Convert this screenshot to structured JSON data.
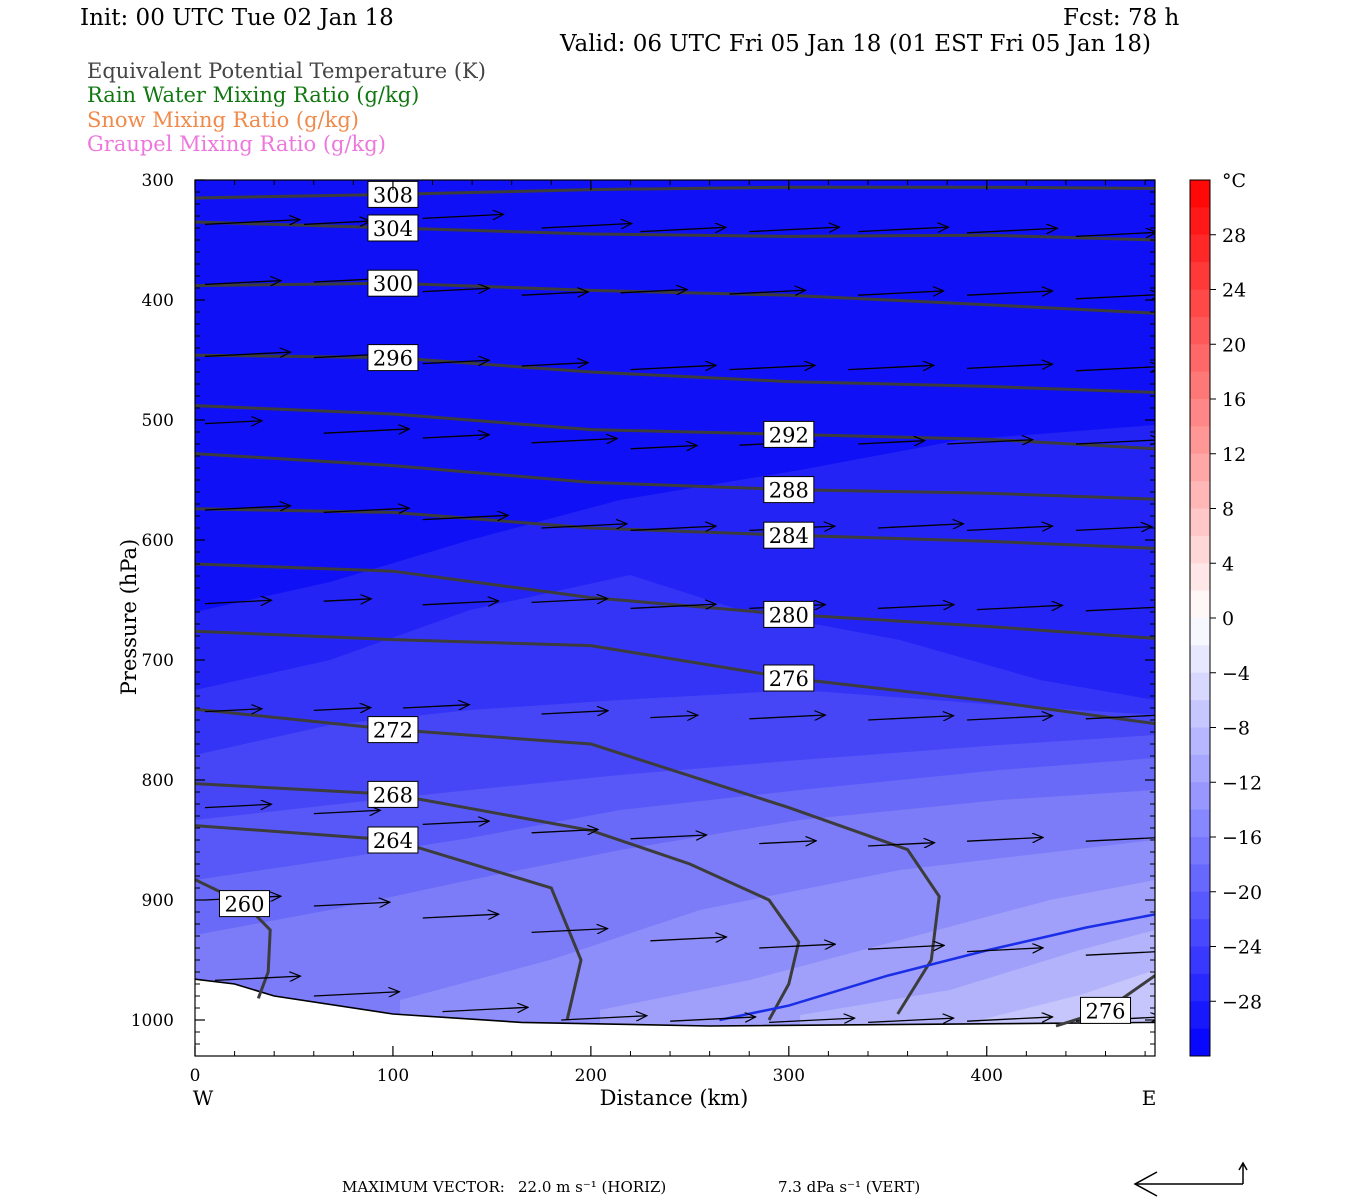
{
  "header": {
    "init": "Init: 00 UTC Tue 02 Jan 18",
    "fcst": "Fcst:   78 h",
    "valid": "Valid: 06 UTC Fri 05 Jan 18 (01 EST Fri 05 Jan 18)"
  },
  "fields": [
    {
      "label": "Equivalent Potential Temperature (K)",
      "color": "#444444"
    },
    {
      "label": "Rain Water Mixing Ratio (g/kg)",
      "color": "#117711"
    },
    {
      "label": "Snow Mixing Ratio (g/kg)",
      "color": "#f08a4b"
    },
    {
      "label": "Graupel Mixing Ratio (g/kg)",
      "color": "#ee77dd"
    }
  ],
  "footer": {
    "label": "MAXIMUM VECTOR:",
    "horiz": "22.0 m s⁻¹ (HORIZ)",
    "vert": "7.3 dPa s⁻¹ (VERT)"
  },
  "chart_data": {
    "type": "heatmap",
    "xlabel": "Distance (km)",
    "ylabel": "Pressure (hPa)",
    "xlim": [
      0,
      485
    ],
    "ylim": [
      1030,
      300
    ],
    "x_ticks": [
      0,
      100,
      200,
      300,
      400
    ],
    "y_ticks": [
      300,
      400,
      500,
      600,
      700,
      800,
      900,
      1000
    ],
    "x_end_labels": {
      "left": "W",
      "right": "E"
    },
    "colorbar": {
      "unit": "°C",
      "tick_labels": [
        "28",
        "24",
        "20",
        "16",
        "12",
        "8",
        "4",
        "0",
        "−4",
        "−8",
        "−12",
        "−16",
        "−20",
        "−24",
        "−28"
      ],
      "tick_values": [
        28,
        24,
        20,
        16,
        12,
        8,
        4,
        0,
        -4,
        -8,
        -12,
        -16,
        -20,
        -24,
        -28
      ],
      "range": [
        -32,
        32
      ],
      "warm_top": "#ff0000",
      "cold_bottom": "#0000ff"
    },
    "theta_e_contours": [
      {
        "level": 308,
        "points": [
          [
            0,
            315
          ],
          [
            100,
            312
          ],
          [
            200,
            308
          ],
          [
            300,
            306
          ],
          [
            400,
            306
          ],
          [
            485,
            307
          ]
        ]
      },
      {
        "level": 304,
        "points": [
          [
            0,
            335
          ],
          [
            100,
            340
          ],
          [
            200,
            345
          ],
          [
            300,
            347
          ],
          [
            400,
            346
          ],
          [
            485,
            350
          ]
        ]
      },
      {
        "level": 300,
        "points": [
          [
            0,
            388
          ],
          [
            100,
            386
          ],
          [
            200,
            392
          ],
          [
            300,
            396
          ],
          [
            400,
            404
          ],
          [
            485,
            411
          ]
        ]
      },
      {
        "level": 296,
        "points": [
          [
            0,
            446
          ],
          [
            100,
            448
          ],
          [
            200,
            460
          ],
          [
            300,
            468
          ],
          [
            400,
            472
          ],
          [
            485,
            477
          ]
        ]
      },
      {
        "level": 292,
        "points": [
          [
            0,
            488
          ],
          [
            100,
            495
          ],
          [
            200,
            508
          ],
          [
            300,
            512
          ],
          [
            400,
            516
          ],
          [
            485,
            524
          ]
        ]
      },
      {
        "level": 288,
        "points": [
          [
            0,
            528
          ],
          [
            100,
            538
          ],
          [
            200,
            552
          ],
          [
            300,
            558
          ],
          [
            400,
            561
          ],
          [
            485,
            566
          ]
        ]
      },
      {
        "level": 284,
        "points": [
          [
            0,
            574
          ],
          [
            100,
            577
          ],
          [
            200,
            590
          ],
          [
            300,
            596
          ],
          [
            400,
            601
          ],
          [
            485,
            607
          ]
        ]
      },
      {
        "level": 280,
        "points": [
          [
            0,
            620
          ],
          [
            100,
            626
          ],
          [
            200,
            648
          ],
          [
            300,
            662
          ],
          [
            400,
            672
          ],
          [
            485,
            682
          ]
        ]
      },
      {
        "level": 276,
        "points": [
          [
            0,
            676
          ],
          [
            100,
            683
          ],
          [
            200,
            688
          ],
          [
            300,
            715
          ],
          [
            400,
            734
          ],
          [
            485,
            753
          ]
        ]
      },
      {
        "level": 272,
        "points": [
          [
            0,
            741
          ],
          [
            100,
            758
          ],
          [
            200,
            770
          ],
          [
            300,
            823
          ],
          [
            360,
            858
          ],
          [
            376,
            897
          ],
          [
            372,
            950
          ],
          [
            355,
            995
          ]
        ]
      },
      {
        "level": 268,
        "points": [
          [
            0,
            803
          ],
          [
            100,
            812
          ],
          [
            200,
            842
          ],
          [
            250,
            870
          ],
          [
            290,
            900
          ],
          [
            305,
            935
          ],
          [
            300,
            970
          ],
          [
            290,
            1000
          ]
        ]
      },
      {
        "level": 264,
        "points": [
          [
            0,
            838
          ],
          [
            100,
            850
          ],
          [
            180,
            890
          ],
          [
            195,
            950
          ],
          [
            188,
            1000
          ]
        ]
      },
      {
        "level": 260,
        "points": [
          [
            0,
            883
          ],
          [
            25,
            903
          ],
          [
            38,
            925
          ],
          [
            37,
            960
          ],
          [
            32,
            982
          ]
        ]
      },
      {
        "level": 276,
        "points": [
          [
            435,
            1005
          ],
          [
            460,
            992
          ],
          [
            485,
            963
          ]
        ]
      }
    ],
    "rain_contour": {
      "points": [
        [
          265,
          1000
        ],
        [
          300,
          988
        ],
        [
          350,
          963
        ],
        [
          400,
          942
        ],
        [
          450,
          923
        ],
        [
          485,
          912
        ]
      ]
    },
    "terrain": {
      "surface_pressure": [
        [
          0,
          966
        ],
        [
          20,
          970
        ],
        [
          40,
          980
        ],
        [
          100,
          995
        ],
        [
          165,
          1002
        ],
        [
          260,
          1005
        ],
        [
          485,
          1002
        ]
      ]
    },
    "vectors": [
      [
        0,
        337,
        1
      ],
      [
        50,
        337,
        0.7
      ],
      [
        110,
        332,
        0.85
      ],
      [
        170,
        340,
        0.95
      ],
      [
        220,
        343,
        0.9
      ],
      [
        275,
        343,
        0.95
      ],
      [
        330,
        343,
        0.95
      ],
      [
        385,
        344,
        0.95
      ],
      [
        440,
        347,
        0.85
      ],
      [
        0,
        387,
        0.8
      ],
      [
        55,
        385,
        0.7
      ],
      [
        110,
        393,
        0.7
      ],
      [
        160,
        396,
        0.7
      ],
      [
        210,
        394,
        0.7
      ],
      [
        265,
        395,
        0.8
      ],
      [
        330,
        396,
        0.9
      ],
      [
        385,
        396,
        0.9
      ],
      [
        440,
        399,
        0.9
      ],
      [
        0,
        447,
        0.9
      ],
      [
        55,
        448,
        0.7
      ],
      [
        110,
        453,
        0.7
      ],
      [
        160,
        455,
        0.7
      ],
      [
        215,
        458,
        0.9
      ],
      [
        265,
        458,
        0.9
      ],
      [
        325,
        458,
        0.9
      ],
      [
        385,
        457,
        0.9
      ],
      [
        440,
        459,
        0.9
      ],
      [
        0,
        503,
        0.6
      ],
      [
        60,
        511,
        0.9
      ],
      [
        110,
        515,
        0.7
      ],
      [
        165,
        519,
        0.9
      ],
      [
        215,
        524,
        0.7
      ],
      [
        270,
        521,
        0.8
      ],
      [
        330,
        520,
        0.7
      ],
      [
        375,
        520,
        0.9
      ],
      [
        440,
        520,
        0.9
      ],
      [
        0,
        575,
        0.9
      ],
      [
        60,
        577,
        0.9
      ],
      [
        110,
        583,
        0.9
      ],
      [
        170,
        590,
        0.9
      ],
      [
        215,
        592,
        0.9
      ],
      [
        275,
        592,
        0.9
      ],
      [
        340,
        590,
        0.9
      ],
      [
        385,
        592,
        0.9
      ],
      [
        440,
        592,
        0.8
      ],
      [
        0,
        653,
        0.7
      ],
      [
        60,
        651,
        0.5
      ],
      [
        110,
        654,
        0.8
      ],
      [
        165,
        652,
        0.8
      ],
      [
        215,
        657,
        0.9
      ],
      [
        275,
        657,
        0.8
      ],
      [
        340,
        657,
        0.8
      ],
      [
        390,
        658,
        0.9
      ],
      [
        445,
        659,
        0.9
      ],
      [
        0,
        743,
        0.6
      ],
      [
        55,
        742,
        0.6
      ],
      [
        100,
        740,
        0.7
      ],
      [
        170,
        745,
        0.7
      ],
      [
        225,
        748,
        0.5
      ],
      [
        275,
        749,
        0.8
      ],
      [
        335,
        750,
        0.9
      ],
      [
        385,
        750,
        0.9
      ],
      [
        445,
        749,
        0.9
      ],
      [
        0,
        823,
        0.7
      ],
      [
        55,
        828,
        0.7
      ],
      [
        110,
        837,
        0.7
      ],
      [
        165,
        844,
        0.7
      ],
      [
        215,
        849,
        0.8
      ],
      [
        280,
        853,
        0.6
      ],
      [
        335,
        855,
        0.7
      ],
      [
        385,
        851,
        0.8
      ],
      [
        445,
        851,
        0.9
      ],
      [
        0,
        900,
        0.8
      ],
      [
        55,
        905,
        0.8
      ],
      [
        110,
        915,
        0.8
      ],
      [
        165,
        927,
        0.8
      ],
      [
        225,
        934,
        0.8
      ],
      [
        280,
        940,
        0.8
      ],
      [
        335,
        941,
        0.8
      ],
      [
        385,
        943,
        0.8
      ],
      [
        445,
        946,
        0.9
      ],
      [
        5,
        967,
        0.9
      ],
      [
        55,
        980,
        0.9
      ],
      [
        120,
        993,
        0.9
      ],
      [
        180,
        1000,
        0.9
      ],
      [
        235,
        1001,
        0.9
      ],
      [
        285,
        1002,
        0.9
      ],
      [
        335,
        1002,
        0.9
      ],
      [
        385,
        1001,
        0.9
      ],
      [
        440,
        1001,
        0.9
      ]
    ]
  }
}
